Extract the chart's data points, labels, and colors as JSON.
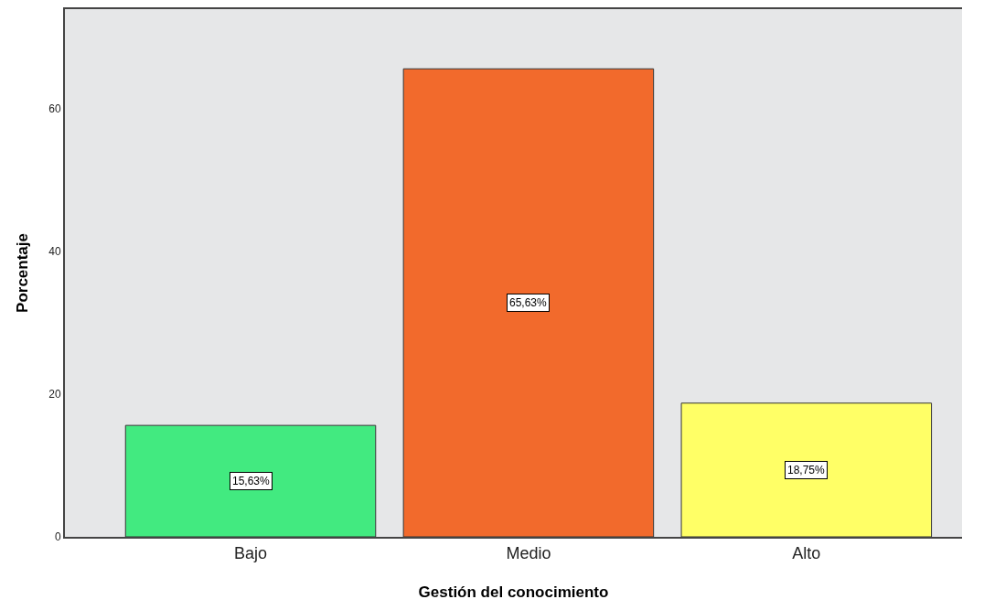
{
  "chart_data": {
    "type": "bar",
    "xlabel": "Gestión del conocimiento",
    "ylabel": "Porcentaje",
    "categories": [
      "Bajo",
      "Medio",
      "Alto"
    ],
    "values": [
      15.63,
      65.63,
      18.75
    ],
    "colors": [
      "#42ea80",
      "#f26a2c",
      "#ffff66"
    ],
    "value_labels": [
      "15,63%",
      "65,63%",
      "18,75%"
    ],
    "ylim": [
      0,
      74
    ],
    "yticks": [
      0,
      20,
      40,
      60
    ]
  }
}
